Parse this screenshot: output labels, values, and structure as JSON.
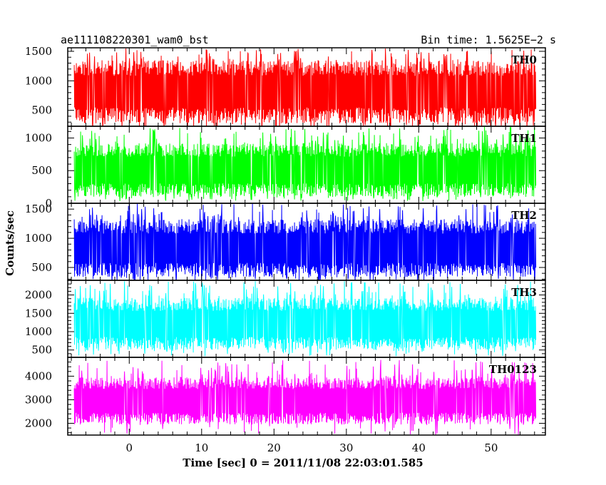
{
  "header": {
    "title": "ae111108220301_wam0_bst",
    "bin_time": "Bin time: 1.5625E−2 s"
  },
  "chart_data": {
    "type": "line",
    "xlabel": "Time [sec] 0 = 2011/11/08 22:03:01.585",
    "ylabel": "Counts/sec",
    "xlim": [
      -8.5,
      57.5
    ],
    "data_x_range": [
      -7.6,
      56.2
    ],
    "xticks": [
      0,
      10,
      20,
      30,
      40,
      50
    ],
    "xminor_step": 2,
    "panels": [
      {
        "name": "TH0",
        "color": "#ff0000",
        "ylim": [
          230,
          1560
        ],
        "yticks": [
          500,
          1000,
          1500
        ],
        "yminor_step": 100,
        "band": {
          "low": 280,
          "high": 1350,
          "spike_min": 150,
          "spike_max": 1550
        }
      },
      {
        "name": "TH1",
        "color": "#00ff00",
        "ylim": [
          0,
          1180
        ],
        "yticks": [
          0,
          500,
          1000
        ],
        "yminor_step": 100,
        "band": {
          "low": 100,
          "high": 920,
          "spike_min": 30,
          "spike_max": 1170
        }
      },
      {
        "name": "TH2",
        "color": "#0000ff",
        "ylim": [
          280,
          1600
        ],
        "yticks": [
          500,
          1000,
          1500
        ],
        "yminor_step": 100,
        "band": {
          "low": 330,
          "high": 1330,
          "spike_min": 230,
          "spike_max": 1600
        }
      },
      {
        "name": "TH3",
        "color": "#00ffff",
        "ylim": [
          300,
          2400
        ],
        "yticks": [
          500,
          1000,
          1500,
          2000
        ],
        "yminor_step": 100,
        "band": {
          "low": 500,
          "high": 1920,
          "spike_min": 330,
          "spike_max": 2380
        }
      },
      {
        "name": "TH0123",
        "color": "#ff00ff",
        "ylim": [
          1500,
          4800
        ],
        "yticks": [
          2000,
          3000,
          4000
        ],
        "yminor_step": 200,
        "band": {
          "low": 1950,
          "high": 3950,
          "spike_min": 1500,
          "spike_max": 4700
        }
      }
    ]
  }
}
